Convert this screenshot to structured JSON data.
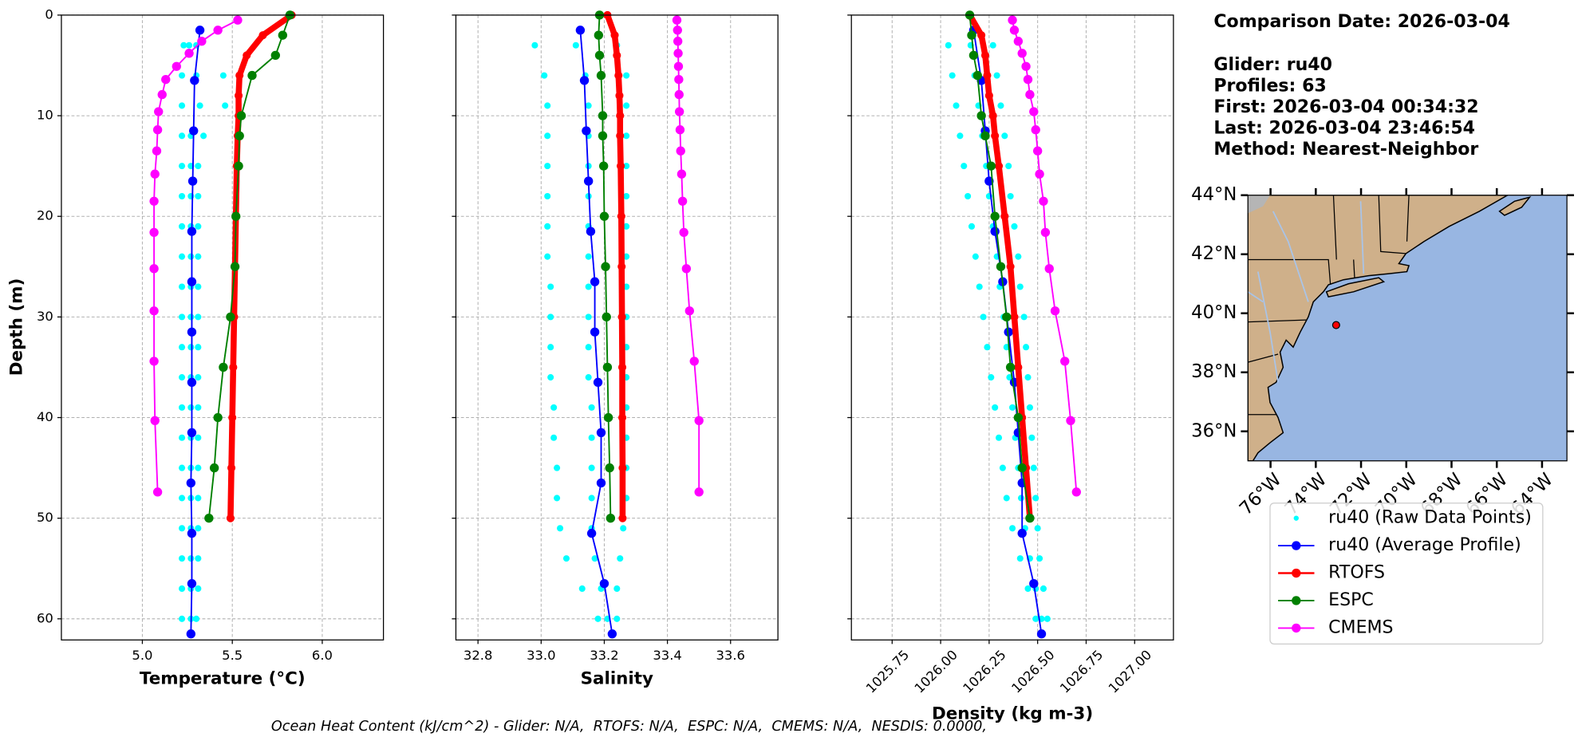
{
  "chart_data": [
    {
      "type": "profile",
      "xlabel": "Temperature (°C)",
      "ylabel": "Depth (m)",
      "grid": true,
      "ytick_labels": true,
      "xlim": [
        4.55,
        6.34
      ],
      "xticks": [
        {
          "value": 5,
          "label": "5.0"
        },
        5.5,
        {
          "value": 6,
          "label": "6.0"
        }
      ],
      "ylim": [
        62.1,
        0
      ],
      "yticks": [
        0,
        10,
        20,
        30,
        40,
        50,
        60
      ],
      "series": [
        {
          "name": "ru40 (Raw Data Points)",
          "color": "#00ffff",
          "kind": "scatter",
          "depth": [
            3,
            6,
            9,
            12,
            15,
            18,
            21,
            24,
            27,
            30,
            33,
            36,
            39,
            42,
            45,
            48,
            51,
            54,
            57,
            60
          ],
          "values": [
            [
              5.23,
              5.26,
              5.3
            ],
            [
              5.22,
              5.3,
              5.45
            ],
            [
              5.22,
              5.32,
              5.46
            ],
            [
              5.22,
              5.27,
              5.34
            ],
            [
              5.22,
              5.27,
              5.31
            ],
            [
              5.22,
              5.27,
              5.31
            ],
            [
              5.22,
              5.27,
              5.31
            ],
            [
              5.22,
              5.27,
              5.31
            ],
            [
              5.22,
              5.27,
              5.31
            ],
            [
              5.22,
              5.27,
              5.31
            ],
            [
              5.22,
              5.27,
              5.31
            ],
            [
              5.22,
              5.27,
              5.31
            ],
            [
              5.22,
              5.27,
              5.31
            ],
            [
              5.22,
              5.27,
              5.31
            ],
            [
              5.22,
              5.27,
              5.31
            ],
            [
              5.22,
              5.27,
              5.31
            ],
            [
              5.22,
              5.27,
              5.31
            ],
            [
              5.22,
              5.27,
              5.31
            ],
            [
              5.22,
              5.27,
              5.31
            ],
            [
              5.22,
              5.27,
              5.3
            ]
          ]
        },
        {
          "name": "ru40 (Average Profile)",
          "color": "#0000ff",
          "kind": "line",
          "line_width": 1.5,
          "marker_size": 4.5,
          "depth": [
            1.5,
            6.5,
            11.5,
            16.5,
            21.5,
            26.5,
            31.5,
            36.5,
            41.5,
            46.5,
            51.5,
            56.5,
            61.5
          ],
          "values": [
            5.32,
            5.29,
            5.285,
            5.28,
            5.275,
            5.275,
            5.275,
            5.275,
            5.275,
            5.27,
            5.275,
            5.275,
            5.27
          ]
        },
        {
          "name": "RTOFS",
          "color": "#ff0000",
          "kind": "line",
          "line_width": 6,
          "marker_size": 4,
          "depth": [
            0,
            2,
            4,
            6,
            8,
            10,
            12,
            15,
            20,
            25,
            30,
            35,
            40,
            45,
            50
          ],
          "values": [
            5.83,
            5.67,
            5.58,
            5.54,
            5.535,
            5.535,
            5.53,
            5.525,
            5.52,
            5.515,
            5.51,
            5.505,
            5.5,
            5.495,
            5.49
          ]
        },
        {
          "name": "ESPC",
          "color": "#008000",
          "kind": "line",
          "line_width": 1.5,
          "marker_size": 4.5,
          "depth": [
            0,
            2,
            4,
            6,
            10,
            12,
            15,
            20,
            25,
            30,
            35,
            40,
            45,
            50
          ],
          "values": [
            5.82,
            5.78,
            5.74,
            5.61,
            5.55,
            5.54,
            5.535,
            5.52,
            5.515,
            5.49,
            5.45,
            5.42,
            5.4,
            5.37
          ]
        },
        {
          "name": "CMEMS",
          "color": "#ff00ff",
          "kind": "line",
          "line_width": 1.5,
          "marker_size": 4.5,
          "depth": [
            0.5,
            1.5,
            2.6,
            3.8,
            5.1,
            6.4,
            7.9,
            9.6,
            11.4,
            13.5,
            15.8,
            18.5,
            21.6,
            25.2,
            29.4,
            34.4,
            40.3,
            47.4
          ],
          "values": [
            5.53,
            5.42,
            5.33,
            5.26,
            5.19,
            5.13,
            5.11,
            5.09,
            5.085,
            5.08,
            5.07,
            5.065,
            5.065,
            5.065,
            5.065,
            5.065,
            5.07,
            5.085
          ]
        }
      ]
    },
    {
      "type": "profile",
      "xlabel": "Salinity",
      "grid": true,
      "ytick_labels": false,
      "xlim": [
        32.73,
        33.75
      ],
      "xticks": [
        32.8,
        {
          "value": 33,
          "label": "33.0"
        },
        33.2,
        33.4,
        33.6
      ],
      "ylim": [
        62.1,
        0
      ],
      "yticks": [
        0,
        10,
        20,
        30,
        40,
        50,
        60
      ],
      "series": [
        {
          "name": "ru40 (Raw Data Points)",
          "color": "#00ffff",
          "kind": "scatter",
          "depth": [
            3,
            6,
            9,
            12,
            15,
            18,
            21,
            24,
            27,
            30,
            33,
            36,
            39,
            42,
            45,
            48,
            51,
            54,
            57,
            60
          ],
          "values": [
            [
              32.98,
              33.11,
              33.24
            ],
            [
              33.01,
              33.14,
              33.27
            ],
            [
              33.02,
              33.15,
              33.27
            ],
            [
              33.02,
              33.15,
              33.27
            ],
            [
              33.02,
              33.15,
              33.27
            ],
            [
              33.02,
              33.15,
              33.27
            ],
            [
              33.02,
              33.15,
              33.27
            ],
            [
              33.02,
              33.15,
              33.27
            ],
            [
              33.03,
              33.15,
              33.27
            ],
            [
              33.03,
              33.15,
              33.27
            ],
            [
              33.03,
              33.15,
              33.27
            ],
            [
              33.03,
              33.15,
              33.27
            ],
            [
              33.04,
              33.16,
              33.27
            ],
            [
              33.04,
              33.16,
              33.27
            ],
            [
              33.05,
              33.16,
              33.27
            ],
            [
              33.05,
              33.16,
              33.27
            ],
            [
              33.06,
              33.16,
              33.26
            ],
            [
              33.08,
              33.17,
              33.25
            ],
            [
              33.13,
              33.19,
              33.24
            ],
            [
              33.18,
              33.21,
              33.24
            ]
          ]
        },
        {
          "name": "ru40 (Average Profile)",
          "color": "#0000ff",
          "kind": "line",
          "line_width": 1.5,
          "marker_size": 4.5,
          "depth": [
            1.5,
            6.5,
            11.5,
            16.5,
            21.5,
            26.5,
            31.5,
            36.5,
            41.5,
            46.5,
            51.5,
            56.5,
            61.5
          ],
          "values": [
            33.124,
            33.137,
            33.143,
            33.15,
            33.157,
            33.17,
            33.17,
            33.18,
            33.19,
            33.19,
            33.16,
            33.2,
            33.225
          ]
        },
        {
          "name": "RTOFS",
          "color": "#ff0000",
          "kind": "line",
          "line_width": 6,
          "marker_size": 4,
          "depth": [
            0,
            2,
            4,
            6,
            8,
            10,
            12,
            15,
            20,
            25,
            30,
            35,
            40,
            45,
            50
          ],
          "values": [
            33.21,
            33.233,
            33.24,
            33.245,
            33.248,
            33.25,
            33.25,
            33.252,
            33.254,
            33.255,
            33.256,
            33.257,
            33.257,
            33.258,
            33.258
          ]
        },
        {
          "name": "ESPC",
          "color": "#008000",
          "kind": "line",
          "line_width": 1.5,
          "marker_size": 4.5,
          "depth": [
            0,
            2,
            4,
            6,
            10,
            12,
            15,
            20,
            25,
            30,
            35,
            40,
            45,
            50
          ],
          "values": [
            33.185,
            33.182,
            33.185,
            33.19,
            33.195,
            33.195,
            33.198,
            33.2,
            33.204,
            33.207,
            33.21,
            33.213,
            33.217,
            33.22
          ]
        },
        {
          "name": "CMEMS",
          "color": "#ff00ff",
          "kind": "line",
          "line_width": 1.5,
          "marker_size": 4.5,
          "depth": [
            0.5,
            1.5,
            2.6,
            3.8,
            5.1,
            6.4,
            7.9,
            9.6,
            11.4,
            13.5,
            15.8,
            18.5,
            21.6,
            25.2,
            29.4,
            34.4,
            40.3,
            47.4
          ],
          "values": [
            33.43,
            33.432,
            33.433,
            33.434,
            33.435,
            33.436,
            33.437,
            33.438,
            33.44,
            33.442,
            33.445,
            33.448,
            33.452,
            33.46,
            33.47,
            33.485,
            33.5,
            33.5
          ]
        }
      ]
    },
    {
      "type": "profile",
      "xlabel": "Density (kg m-3)",
      "grid": true,
      "ytick_labels": false,
      "xtick_rotation": 45,
      "xlim": [
        1025.54,
        1027.2
      ],
      "xticks": [
        1025.75,
        {
          "value": 1026,
          "label": "1026.00"
        },
        1026.25,
        {
          "value": 1026.5,
          "label": "1026.50"
        },
        1026.75,
        {
          "value": 1027,
          "label": "1027.00"
        }
      ],
      "ylim": [
        62.1,
        0
      ],
      "yticks": [
        0,
        10,
        20,
        30,
        40,
        50,
        60
      ],
      "series": [
        {
          "name": "ru40 (Raw Data Points)",
          "color": "#00ffff",
          "kind": "scatter",
          "depth": [
            3,
            6,
            9,
            12,
            15,
            18,
            21,
            24,
            27,
            30,
            33,
            36,
            39,
            42,
            45,
            48,
            51,
            54,
            57,
            60
          ],
          "values": [
            [
              1026.04,
              1026.155,
              1026.27
            ],
            [
              1026.06,
              1026.175,
              1026.29
            ],
            [
              1026.08,
              1026.195,
              1026.31
            ],
            [
              1026.1,
              1026.215,
              1026.33
            ],
            [
              1026.12,
              1026.235,
              1026.35
            ],
            [
              1026.14,
              1026.25,
              1026.36
            ],
            [
              1026.16,
              1026.27,
              1026.38
            ],
            [
              1026.18,
              1026.29,
              1026.4
            ],
            [
              1026.2,
              1026.305,
              1026.41
            ],
            [
              1026.22,
              1026.325,
              1026.43
            ],
            [
              1026.24,
              1026.34,
              1026.44
            ],
            [
              1026.26,
              1026.355,
              1026.45
            ],
            [
              1026.28,
              1026.37,
              1026.46
            ],
            [
              1026.3,
              1026.385,
              1026.47
            ],
            [
              1026.32,
              1026.4,
              1026.48
            ],
            [
              1026.34,
              1026.415,
              1026.49
            ],
            [
              1026.37,
              1026.435,
              1026.5
            ],
            [
              1026.41,
              1026.46,
              1026.51
            ],
            [
              1026.45,
              1026.49,
              1026.53
            ],
            [
              1026.49,
              1026.52,
              1026.55
            ]
          ]
        },
        {
          "name": "ru40 (Average Profile)",
          "color": "#0000ff",
          "kind": "line",
          "line_width": 1.5,
          "marker_size": 4.5,
          "depth": [
            1.5,
            6.5,
            11.5,
            16.5,
            21.5,
            26.5,
            31.5,
            36.5,
            41.5,
            46.5,
            51.5,
            56.5,
            61.5
          ],
          "values": [
            1026.17,
            1026.21,
            1026.23,
            1026.25,
            1026.28,
            1026.32,
            1026.35,
            1026.38,
            1026.4,
            1026.42,
            1026.42,
            1026.48,
            1026.52
          ]
        },
        {
          "name": "RTOFS",
          "color": "#ff0000",
          "kind": "line",
          "line_width": 6,
          "marker_size": 4,
          "depth": [
            0,
            2,
            4,
            6,
            8,
            10,
            12,
            15,
            20,
            25,
            30,
            35,
            40,
            45,
            50
          ],
          "values": [
            1026.15,
            1026.21,
            1026.23,
            1026.24,
            1026.25,
            1026.27,
            1026.28,
            1026.3,
            1026.33,
            1026.36,
            1026.38,
            1026.4,
            1026.42,
            1026.44,
            1026.46
          ]
        },
        {
          "name": "ESPC",
          "color": "#008000",
          "kind": "line",
          "line_width": 1.5,
          "marker_size": 4.5,
          "depth": [
            0,
            2,
            4,
            6,
            10,
            12,
            15,
            20,
            25,
            30,
            35,
            40,
            45,
            50
          ],
          "values": [
            1026.15,
            1026.16,
            1026.17,
            1026.19,
            1026.21,
            1026.23,
            1026.26,
            1026.28,
            1026.31,
            1026.34,
            1026.36,
            1026.4,
            1026.42,
            1026.46
          ]
        },
        {
          "name": "CMEMS",
          "color": "#ff00ff",
          "kind": "line",
          "line_width": 1.5,
          "marker_size": 4.5,
          "depth": [
            0.5,
            1.5,
            2.6,
            3.8,
            5.1,
            6.4,
            7.9,
            9.6,
            11.4,
            13.5,
            15.8,
            18.5,
            21.6,
            25.2,
            29.4,
            34.4,
            40.3,
            47.4
          ],
          "values": [
            1026.37,
            1026.38,
            1026.4,
            1026.42,
            1026.44,
            1026.45,
            1026.46,
            1026.48,
            1026.49,
            1026.5,
            1026.51,
            1026.53,
            1026.54,
            1026.56,
            1026.59,
            1026.64,
            1026.67,
            1026.7
          ]
        }
      ]
    },
    {
      "type": "map",
      "xlim": [
        -77,
        -62.9
      ],
      "ylim": [
        35,
        44
      ],
      "xticks": [
        {
          "value": -76,
          "label": "76°W"
        },
        {
          "value": -74,
          "label": "74°W"
        },
        {
          "value": -72,
          "label": "72°W"
        },
        {
          "value": -70,
          "label": "70°W"
        },
        {
          "value": -68,
          "label": "68°W"
        },
        {
          "value": -66,
          "label": "66°W"
        },
        {
          "value": -64,
          "label": "64°W"
        }
      ],
      "yticks": [
        {
          "value": 36,
          "label": "36°N"
        },
        {
          "value": 38,
          "label": "38°N"
        },
        {
          "value": 40,
          "label": "40°N"
        },
        {
          "value": 42,
          "label": "42°N"
        },
        {
          "value": 44,
          "label": "44°N"
        }
      ],
      "glider_location": {
        "lon": -73.1,
        "lat": 39.6
      },
      "glider_color": "#ff0000"
    }
  ],
  "info": [
    "Comparison Date: 2026-03-04",
    "Glider: ru40",
    "Profiles: 63",
    "First: 2026-03-04 00:34:32",
    "Last: 2026-03-04 23:46:54",
    "Method: Nearest-Neighbor"
  ],
  "footer": "Ocean Heat Content (kJ/cm^2) - Glider: N/A,  RTOFS: N/A,  ESPC: N/A,  CMEMS: N/A,  NESDIS: 0.0000,"
}
